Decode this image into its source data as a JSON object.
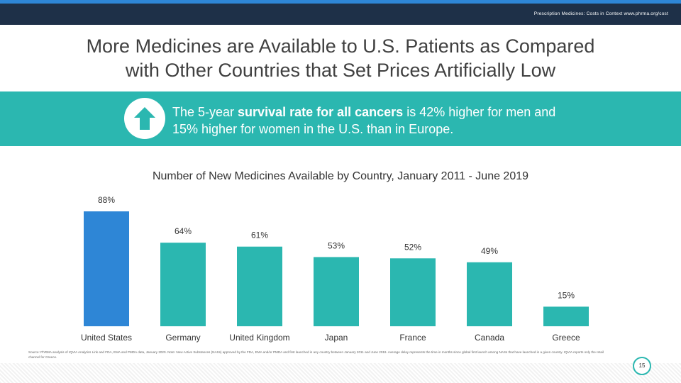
{
  "header": {
    "text": "Prescription Medicines: Costs in Context  www.phrma.org/cost"
  },
  "title": {
    "line1": "More Medicines are Available to U.S. Patients as Compared",
    "line2": "with Other Countries that Set Prices Artificially Low"
  },
  "banner": {
    "icon": "up-arrow-icon",
    "text_pre": "The 5-year ",
    "text_bold": "survival rate for all cancers",
    "text_post": " is 42% higher for men and 15% higher for women in the U.S. than in Europe."
  },
  "colors": {
    "us_bar": "#2e86d6",
    "other_bar": "#2bb7b0",
    "header": "#1e3048",
    "banner": "#2bb7b0"
  },
  "chart_data": {
    "type": "bar",
    "title": "Number of New Medicines Available by Country, January 2011 - June 2019",
    "categories": [
      "United States",
      "Germany",
      "United Kingdom",
      "Japan",
      "France",
      "Canada",
      "Greece"
    ],
    "values": [
      88,
      64,
      61,
      53,
      52,
      49,
      15
    ],
    "labels": [
      "88%",
      "64%",
      "61%",
      "53%",
      "52%",
      "49%",
      "15%"
    ],
    "xlabel": "",
    "ylabel": "",
    "ylim": [
      0,
      88
    ],
    "grid": false
  },
  "source": "Source: PhRMA analysis of IQVIA Analytics Link and FDA, EMA and PMDA data, January 2020. Note: New Active Substances (NASs) approved by the FDA, EMA and/or PMDA and first launched in any country between January 2011 and June 2019. Average delay represents the time in months since global first launch among NASs that have launched in a given country. IQVIA reports only the retail channel for Greece.",
  "page_number": "15"
}
